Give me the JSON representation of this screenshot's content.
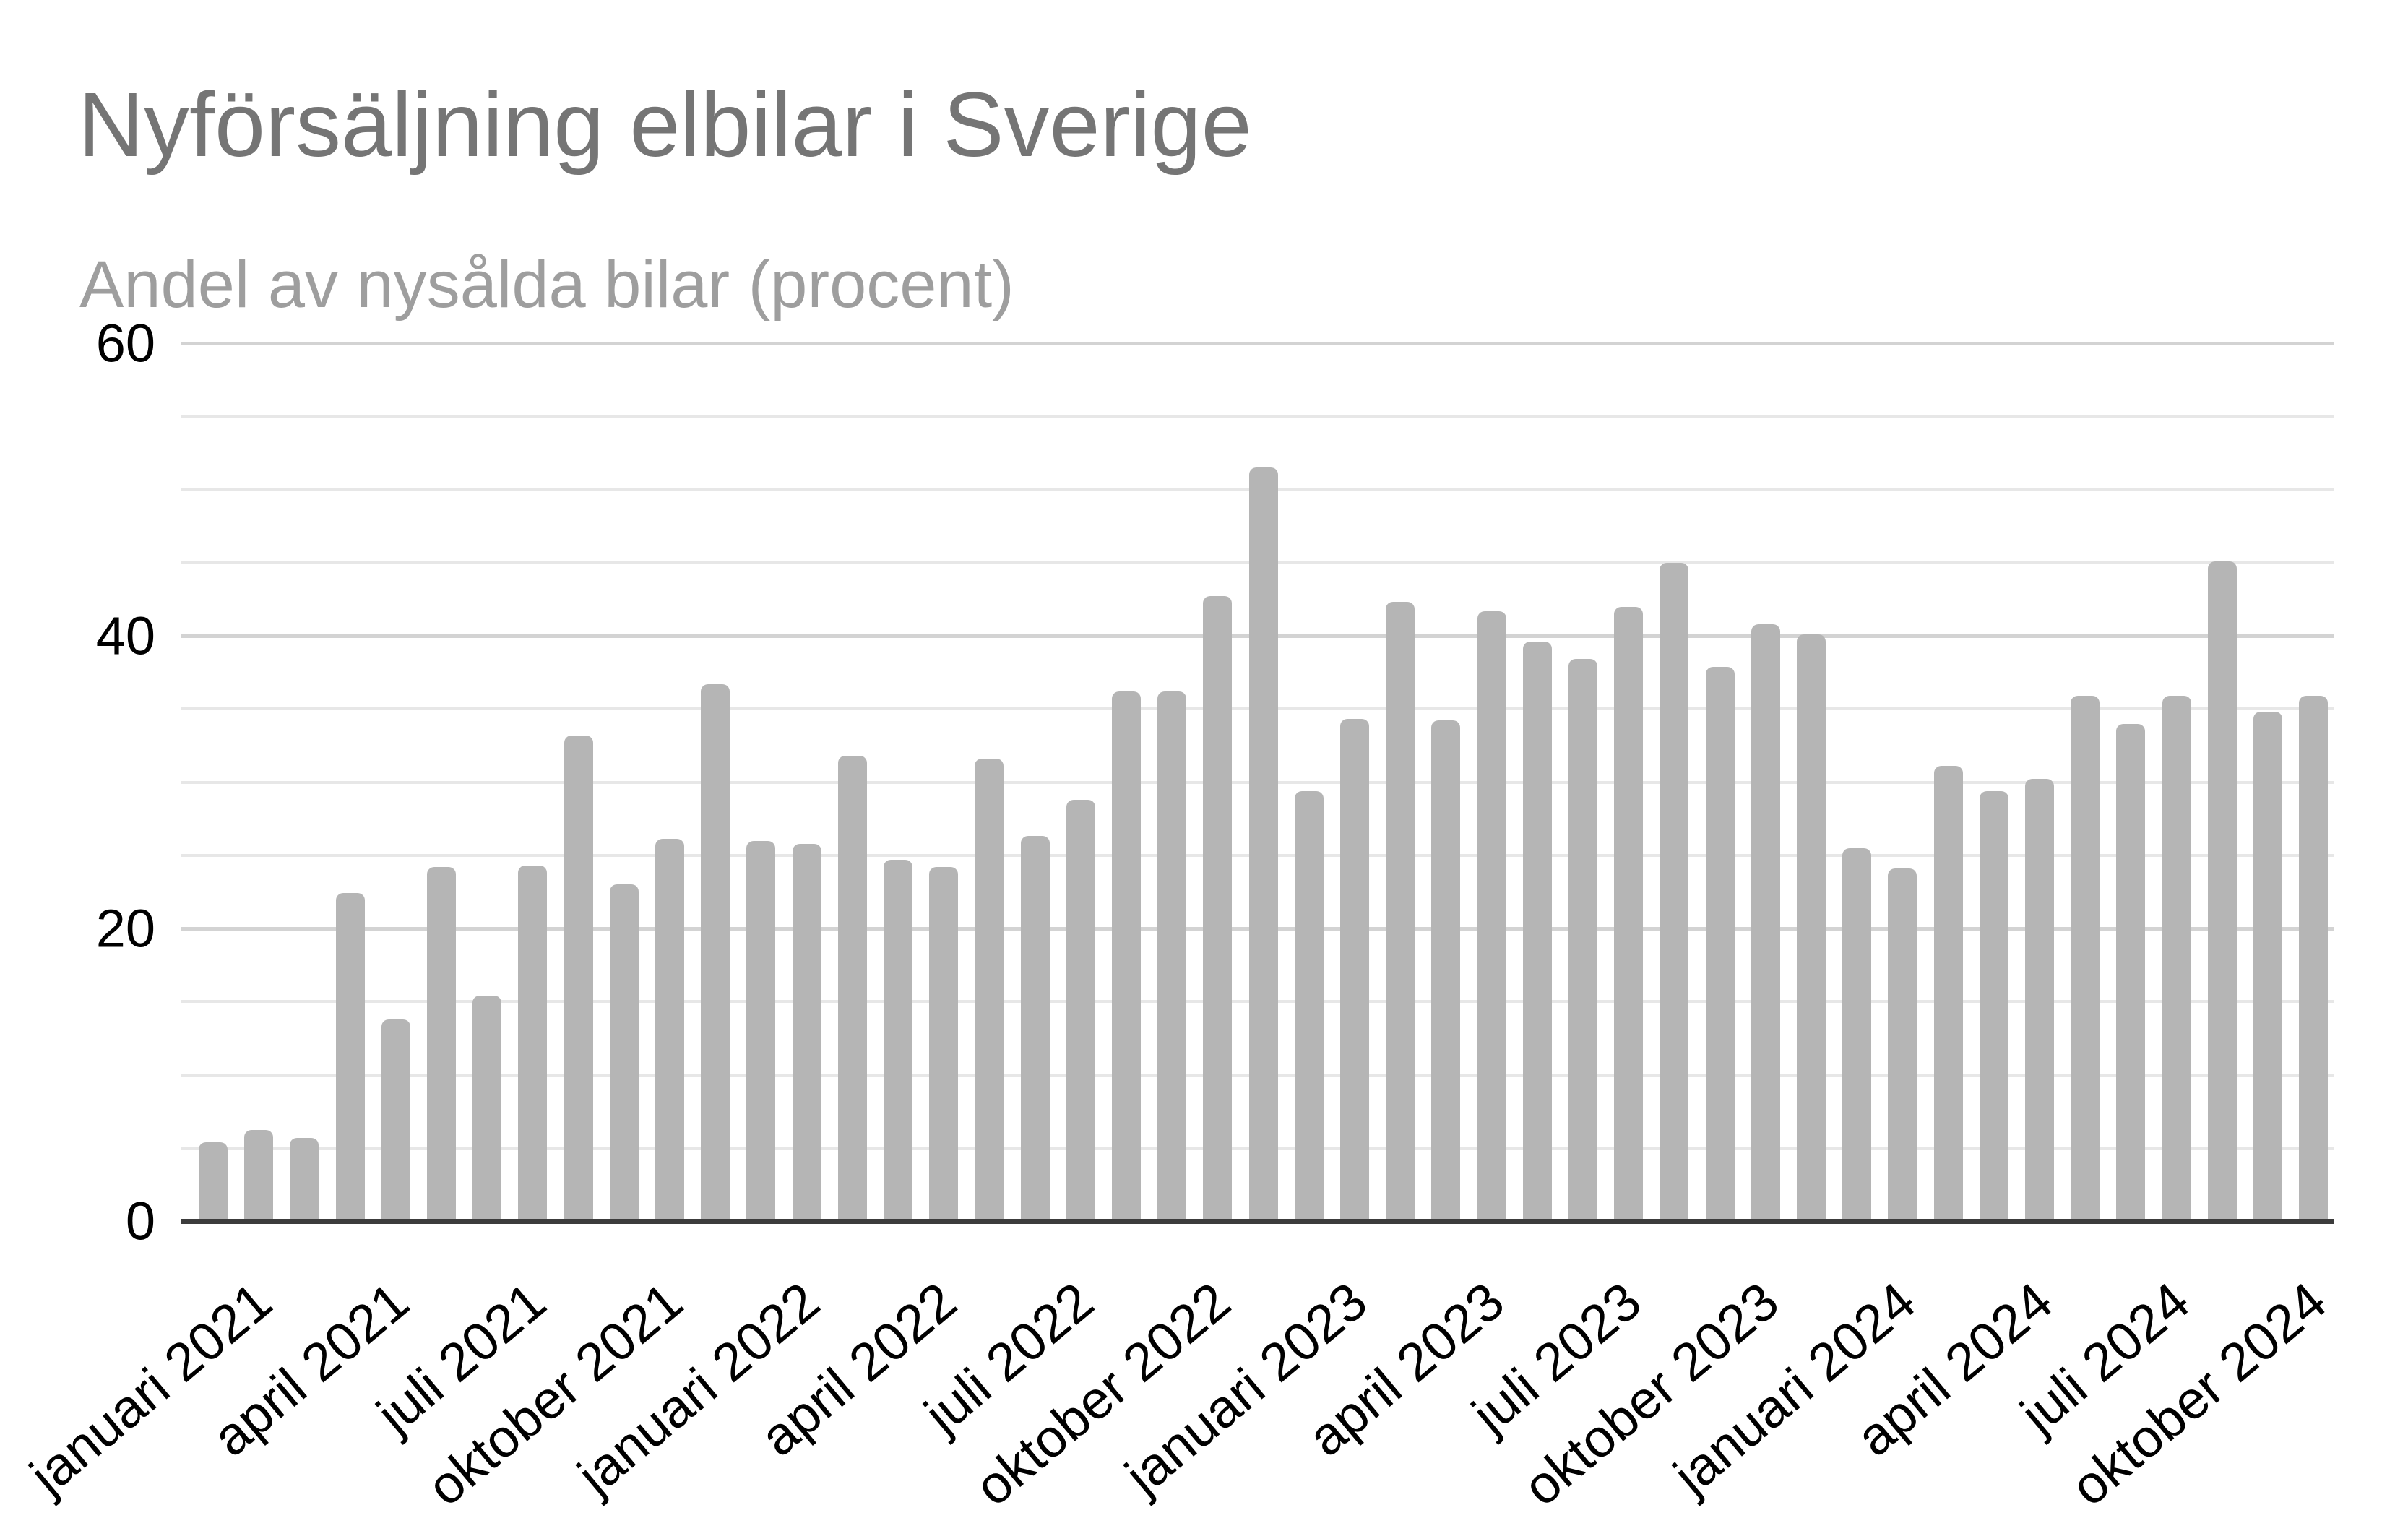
{
  "header": {
    "title": "Nyförsäljning elbilar i Sverige",
    "subtitle": "Andel av nysålda bilar (procent)"
  },
  "chart_data": {
    "type": "bar",
    "title": "Nyförsäljning elbilar i Sverige",
    "subtitle": "Andel av nysålda bilar (procent)",
    "xlabel": "",
    "ylabel": "",
    "categories": [
      "januari 2021",
      "februari 2021",
      "mars 2021",
      "april 2021",
      "maj 2021",
      "juni 2021",
      "juli 2021",
      "augusti 2021",
      "september 2021",
      "oktober 2021",
      "november 2021",
      "december 2021",
      "januari 2022",
      "februari 2022",
      "mars 2022",
      "april 2022",
      "maj 2022",
      "juni 2022",
      "juli 2022",
      "augusti 2022",
      "september 2022",
      "oktober 2022",
      "november 2022",
      "december 2022",
      "januari 2023",
      "februari 2023",
      "mars 2023",
      "april 2023",
      "maj 2023",
      "juni 2023",
      "juli 2023",
      "augusti 2023",
      "september 2023",
      "oktober 2023",
      "november 2023",
      "december 2023",
      "januari 2024",
      "februari 2024",
      "mars 2024",
      "april 2024",
      "maj 2024",
      "juni 2024",
      "juli 2024",
      "augusti 2024",
      "september 2024",
      "oktober 2024",
      "november 2024"
    ],
    "values": [
      5.4,
      6.2,
      5.7,
      22.4,
      13.8,
      24.2,
      15.4,
      24.3,
      33.2,
      23.0,
      26.1,
      36.7,
      26.0,
      25.8,
      31.8,
      24.7,
      24.2,
      31.6,
      26.3,
      28.8,
      36.2,
      36.2,
      42.7,
      51.5,
      29.4,
      34.3,
      42.3,
      34.2,
      41.7,
      39.6,
      38.4,
      42.0,
      45.0,
      37.9,
      40.8,
      40.1,
      25.5,
      24.1,
      31.1,
      29.4,
      30.2,
      35.9,
      34.0,
      35.9,
      45.1,
      34.8,
      35.9
    ],
    "x_tick_labels": [
      "januari 2021",
      "april 2021",
      "juli 2021",
      "oktober 2021",
      "januari 2022",
      "april 2022",
      "juli 2022",
      "oktober 2022",
      "januari 2023",
      "april 2023",
      "juli 2023",
      "oktober 2023",
      "januari 2024",
      "april 2024",
      "juli 2024",
      "oktober 2024"
    ],
    "x_tick_every": 3,
    "y_ticks": [
      0,
      20,
      40,
      60
    ],
    "y_minor_step": 5,
    "ylim": [
      0,
      60
    ],
    "grid": "horizontal",
    "legend": "none",
    "bar_color": "#b5b5b5",
    "major_grid_color": "#d3d3d3",
    "minor_grid_color": "#e7e7e7",
    "axis_line_color": "#3c3c3c",
    "title_color": "#757575",
    "subtitle_color": "#9e9e9e",
    "tick_label_color": "#000000"
  }
}
